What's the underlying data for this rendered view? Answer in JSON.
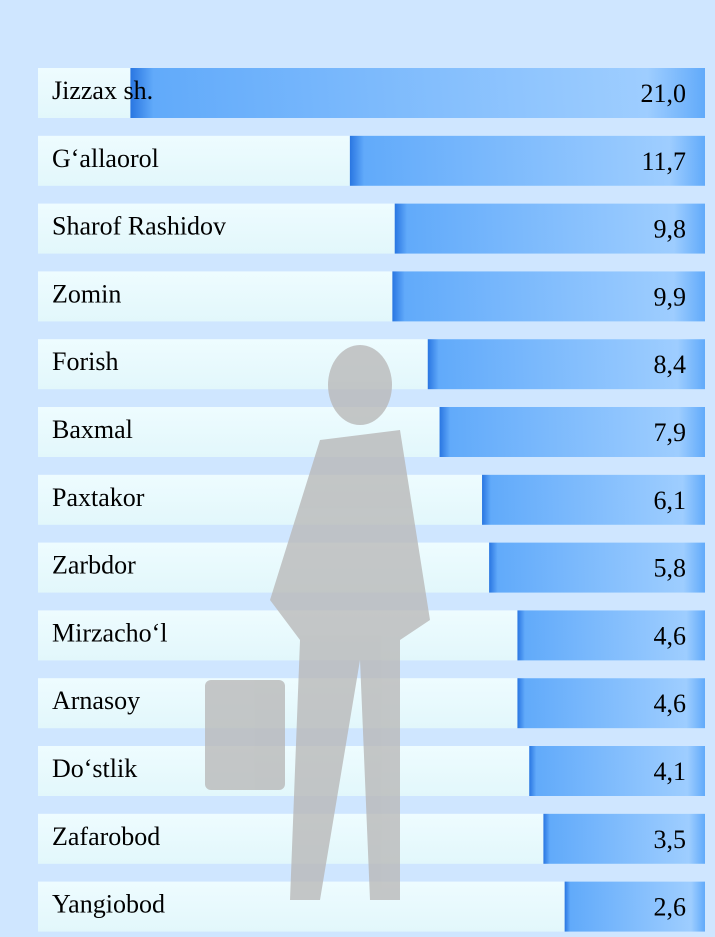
{
  "chart_data": {
    "type": "bar",
    "orientation": "horizontal",
    "categories": [
      "Jizzax sh.",
      "G‘allaorol",
      "Sharof Rashidov",
      "Zomin",
      "Forish",
      "Baxmal",
      "Paxtakor",
      "Zarbdor",
      "Mirzacho‘l",
      "Arnasoy",
      "Do‘stlik",
      "Zafarobod",
      "Yangiobod"
    ],
    "values": [
      21.0,
      11.7,
      9.8,
      9.9,
      8.4,
      7.9,
      6.1,
      5.8,
      4.6,
      4.6,
      4.1,
      3.5,
      2.6
    ],
    "value_labels": [
      "21,0",
      "11,7",
      "9,8",
      "9,9",
      "8,4",
      "7,9",
      "6,1",
      "5,8",
      "4,6",
      "4,6",
      "4,1",
      "3,5",
      "2,6"
    ],
    "color": "#4a9af5"
  }
}
